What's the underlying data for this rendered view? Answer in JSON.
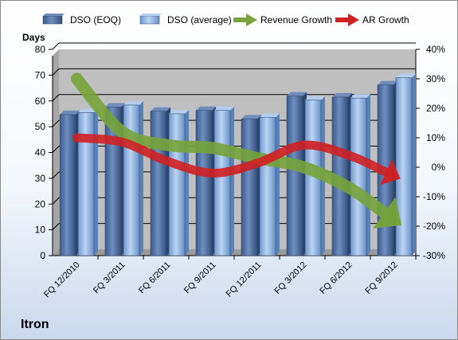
{
  "chart_data": {
    "type": "bar",
    "title": "Itron",
    "ylabel": "Days",
    "y2label": "",
    "categories": [
      "FQ 12/2010",
      "FQ 3/2011",
      "FQ 6/2011",
      "FQ 9/2011",
      "FQ 12/2011",
      "FQ 3/2012",
      "FQ 6/2012",
      "FQ 9/2012"
    ],
    "ylim": [
      0,
      80
    ],
    "yticks": [
      0,
      10,
      20,
      30,
      40,
      50,
      60,
      70,
      80
    ],
    "y2lim": [
      -30,
      40
    ],
    "y2ticks": [
      -30,
      -20,
      -10,
      0,
      10,
      20,
      30,
      40
    ],
    "y2tick_labels": [
      "-30%",
      "-20%",
      "-10%",
      "0%",
      "10%",
      "20%",
      "30%",
      "40%"
    ],
    "grid": true,
    "legend_position": "top",
    "series": [
      {
        "name": "DSO (EOQ)",
        "kind": "bar",
        "axis": "left",
        "color": "#4f6d9c",
        "values": [
          54.7,
          57.6,
          56.0,
          56.3,
          53.0,
          61.9,
          61.5,
          66.2
        ]
      },
      {
        "name": "DSO (average)",
        "kind": "bar",
        "axis": "left",
        "color": "#8fb1de",
        "values": [
          55.5,
          58.4,
          55.0,
          56.3,
          53.6,
          60.3,
          61.1,
          69.0
        ]
      },
      {
        "name": "Revenue Growth",
        "kind": "arrow",
        "axis": "right",
        "color": "#77a33a",
        "values": [
          30,
          12,
          7.5,
          6.5,
          3,
          0,
          -7,
          -18
        ]
      },
      {
        "name": "AR Growth",
        "kind": "arrow",
        "axis": "right",
        "color": "#d02022",
        "values": [
          10,
          8.5,
          2,
          -2,
          1.5,
          7.5,
          4,
          -3
        ]
      }
    ]
  }
}
